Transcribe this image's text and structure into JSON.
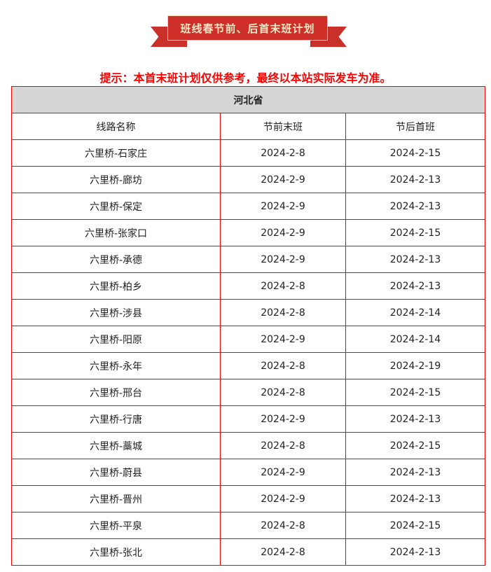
{
  "banner": {
    "title": "班线春节前、后首末班计划"
  },
  "notice": "提示：本首末班计划仅供参考，最终以本站实际发车为准。",
  "table": {
    "province": "河北省",
    "headers": [
      "线路名称",
      "节前末班",
      "节后首班"
    ],
    "rows": [
      [
        "六里桥-石家庄",
        "2024-2-8",
        "2024-2-15"
      ],
      [
        "六里桥-廊坊",
        "2024-2-9",
        "2024-2-13"
      ],
      [
        "六里桥-保定",
        "2024-2-9",
        "2024-2-13"
      ],
      [
        "六里桥-张家口",
        "2024-2-9",
        "2024-2-15"
      ],
      [
        "六里桥-承德",
        "2024-2-9",
        "2024-2-13"
      ],
      [
        "六里桥-柏乡",
        "2024-2-8",
        "2024-2-13"
      ],
      [
        "六里桥-涉县",
        "2024-2-8",
        "2024-2-14"
      ],
      [
        "六里桥-阳原",
        "2024-2-9",
        "2024-2-14"
      ],
      [
        "六里桥-永年",
        "2024-2-8",
        "2024-2-19"
      ],
      [
        "六里桥-邢台",
        "2024-2-8",
        "2024-2-15"
      ],
      [
        "六里桥-行唐",
        "2024-2-9",
        "2024-2-13"
      ],
      [
        "六里桥-藁城",
        "2024-2-8",
        "2024-2-15"
      ],
      [
        "六里桥-蔚县",
        "2024-2-9",
        "2024-2-13"
      ],
      [
        "六里桥-晋州",
        "2024-2-9",
        "2024-2-13"
      ],
      [
        "六里桥-平泉",
        "2024-2-8",
        "2024-2-15"
      ],
      [
        "六里桥-张北",
        "2024-2-8",
        "2024-2-13"
      ]
    ]
  },
  "colors": {
    "border": "#ff0000",
    "banner": "#cd2e27",
    "notice": "#ff0000",
    "province_bg": "#d6d6d6"
  }
}
